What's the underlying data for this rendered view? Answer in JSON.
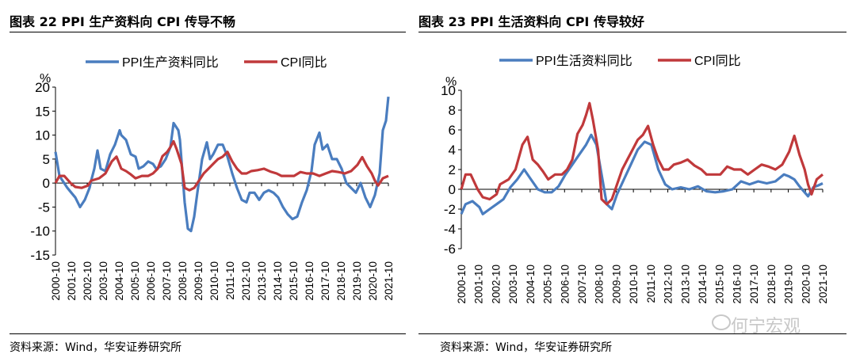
{
  "panels": [
    {
      "title": "图表  22 PPI 生产资料向 CPI 传导不畅",
      "source": "资料来源：Wind，华安证券研究所"
    },
    {
      "title": "图表  23 PPI 生活资料向 CPI 传导较好",
      "source": "资料来源：Wind，华安证券研究所"
    }
  ],
  "watermark": "何宁宏观",
  "watermark_icon": "wechat-icon",
  "colors": {
    "ppi": "#4a7dbf",
    "cpi": "#c0393b"
  },
  "chart_data": [
    {
      "type": "line",
      "ylabel": "%",
      "ylim": [
        -15,
        20
      ],
      "yticks": [
        -15,
        -10,
        -5,
        0,
        5,
        10,
        15,
        20
      ],
      "xlim": [
        2000.75,
        2021.75
      ],
      "xticks": [
        "2000-10",
        "2001-10",
        "2002-10",
        "2003-10",
        "2004-10",
        "2005-10",
        "2006-10",
        "2007-10",
        "2008-10",
        "2009-10",
        "2010-10",
        "2011-10",
        "2012-10",
        "2013-10",
        "2014-10",
        "2015-10",
        "2016-10",
        "2017-10",
        "2018-10",
        "2019-10",
        "2020-10",
        "2021-10"
      ],
      "legend_position": "top",
      "grid": false,
      "series": [
        {
          "name": "PPI生产资料同比",
          "color": "#4a7dbf",
          "x": [
            2000.75,
            2001.0,
            2001.5,
            2001.75,
            2002.0,
            2002.3,
            2002.6,
            2002.9,
            2003.0,
            2003.2,
            2003.4,
            2003.6,
            2003.9,
            2004.2,
            2004.5,
            2004.8,
            2004.9,
            2005.2,
            2005.5,
            2005.8,
            2006.0,
            2006.3,
            2006.6,
            2006.9,
            2007.1,
            2007.4,
            2007.7,
            2008.0,
            2008.2,
            2008.5,
            2008.6,
            2008.9,
            2009.1,
            2009.3,
            2009.5,
            2009.7,
            2010.0,
            2010.3,
            2010.5,
            2010.7,
            2011.0,
            2011.3,
            2011.6,
            2011.9,
            2012.2,
            2012.5,
            2012.8,
            2013.0,
            2013.3,
            2013.6,
            2013.9,
            2014.2,
            2014.5,
            2014.8,
            2015.1,
            2015.4,
            2015.7,
            2016.0,
            2016.3,
            2016.6,
            2016.9,
            2017.1,
            2017.4,
            2017.6,
            2017.9,
            2018.2,
            2018.5,
            2018.8,
            2019.1,
            2019.4,
            2019.7,
            2020.0,
            2020.3,
            2020.6,
            2020.9,
            2021.2,
            2021.4,
            2021.6,
            2021.75
          ],
          "y": [
            6.5,
            1.5,
            -1.0,
            -2.0,
            -3.0,
            -5.0,
            -3.5,
            -1.0,
            0.5,
            3.0,
            6.8,
            3.0,
            2.5,
            6.0,
            8.0,
            11.0,
            10.0,
            9.0,
            6.0,
            5.5,
            3.0,
            3.5,
            4.5,
            4.0,
            3.0,
            3.5,
            5.0,
            7.5,
            12.5,
            11.0,
            9.0,
            -4.0,
            -9.5,
            -10.0,
            -7.0,
            -2.0,
            5.0,
            8.5,
            5.0,
            6.0,
            8.0,
            8.0,
            5.5,
            2.0,
            -1.0,
            -3.5,
            -4.0,
            -2.0,
            -2.0,
            -3.5,
            -2.0,
            -1.5,
            -2.0,
            -3.0,
            -5.0,
            -6.5,
            -7.5,
            -7.0,
            -4.0,
            -1.5,
            2.5,
            8.0,
            10.5,
            7.0,
            8.0,
            5.0,
            5.0,
            3.0,
            0.0,
            -1.0,
            -2.0,
            0.0,
            -3.0,
            -5.0,
            -2.5,
            2.0,
            11.0,
            13.0,
            18.0
          ]
        },
        {
          "name": "CPI同比",
          "color": "#c0393b",
          "x": [
            2000.75,
            2001.0,
            2001.3,
            2001.7,
            2002.0,
            2002.4,
            2002.8,
            2003.0,
            2003.5,
            2003.9,
            2004.3,
            2004.6,
            2004.9,
            2005.2,
            2005.5,
            2005.8,
            2006.2,
            2006.6,
            2006.9,
            2007.2,
            2007.5,
            2007.8,
            2008.0,
            2008.2,
            2008.4,
            2008.7,
            2008.9,
            2009.2,
            2009.5,
            2009.8,
            2010.1,
            2010.4,
            2010.7,
            2011.0,
            2011.3,
            2011.6,
            2011.9,
            2012.2,
            2012.5,
            2012.8,
            2013.1,
            2013.5,
            2013.9,
            2014.3,
            2014.7,
            2015.0,
            2015.4,
            2015.8,
            2016.2,
            2016.6,
            2017.0,
            2017.4,
            2017.8,
            2018.2,
            2018.6,
            2019.0,
            2019.4,
            2019.8,
            2020.1,
            2020.4,
            2020.7,
            2020.9,
            2021.1,
            2021.4,
            2021.75
          ],
          "y": [
            0.0,
            1.5,
            1.5,
            0.0,
            -0.8,
            -1.0,
            -0.5,
            0.5,
            1.0,
            2.0,
            4.5,
            5.5,
            3.0,
            2.5,
            1.8,
            1.0,
            1.5,
            1.5,
            2.0,
            3.0,
            5.6,
            6.5,
            7.5,
            8.7,
            7.0,
            4.0,
            -1.0,
            -1.5,
            -1.0,
            0.5,
            2.0,
            3.0,
            4.0,
            5.0,
            5.5,
            6.5,
            4.5,
            3.0,
            2.0,
            2.0,
            2.5,
            2.7,
            3.0,
            2.4,
            2.0,
            1.5,
            1.5,
            1.5,
            2.3,
            2.0,
            2.0,
            1.5,
            2.0,
            2.5,
            2.3,
            2.0,
            2.5,
            3.8,
            5.4,
            3.5,
            2.0,
            0.5,
            -0.5,
            1.0,
            1.5
          ]
        }
      ]
    },
    {
      "type": "line",
      "ylabel": "%",
      "ylim": [
        -6,
        10
      ],
      "yticks": [
        -6,
        -4,
        -2,
        0,
        2,
        4,
        6,
        8,
        10
      ],
      "xlim": [
        2000.75,
        2021.75
      ],
      "xticks": [
        "2000-10",
        "2001-10",
        "2002-10",
        "2003-10",
        "2004-10",
        "2005-10",
        "2006-10",
        "2007-10",
        "2008-10",
        "2009-10",
        "2010-10",
        "2011-10",
        "2012-10",
        "2013-10",
        "2014-10",
        "2015-10",
        "2016-10",
        "2017-10",
        "2018-10",
        "2019-10",
        "2020-10",
        "2021-10"
      ],
      "legend_position": "top",
      "grid": false,
      "series": [
        {
          "name": "PPI生活资料同比",
          "color": "#4a7dbf",
          "x": [
            2000.75,
            2001.0,
            2001.4,
            2001.8,
            2002.0,
            2002.4,
            2002.8,
            2003.2,
            2003.6,
            2004.0,
            2004.4,
            2004.8,
            2005.2,
            2005.6,
            2006.0,
            2006.4,
            2006.8,
            2007.2,
            2007.6,
            2008.0,
            2008.3,
            2008.6,
            2008.9,
            2009.2,
            2009.5,
            2009.8,
            2010.2,
            2010.6,
            2011.0,
            2011.4,
            2011.8,
            2012.2,
            2012.6,
            2013.0,
            2013.5,
            2014.0,
            2014.5,
            2015.0,
            2015.5,
            2016.0,
            2016.5,
            2017.0,
            2017.5,
            2018.0,
            2018.5,
            2019.0,
            2019.5,
            2019.8,
            2020.1,
            2020.4,
            2020.7,
            2020.9,
            2021.2,
            2021.5,
            2021.75
          ],
          "y": [
            -2.5,
            -1.5,
            -1.2,
            -1.8,
            -2.5,
            -2.0,
            -1.5,
            -1.0,
            0.2,
            1.0,
            2.0,
            1.0,
            0.0,
            -0.3,
            -0.3,
            0.3,
            1.5,
            2.5,
            3.5,
            4.5,
            5.5,
            4.5,
            1.5,
            -1.5,
            -2.0,
            -0.5,
            1.0,
            2.5,
            4.0,
            4.8,
            4.5,
            2.0,
            0.5,
            0.0,
            0.2,
            0.0,
            0.3,
            -0.2,
            -0.3,
            -0.2,
            0.0,
            0.8,
            0.5,
            0.8,
            0.6,
            0.8,
            1.5,
            1.3,
            1.0,
            0.3,
            -0.3,
            -0.7,
            0.2,
            0.4,
            0.6
          ]
        },
        {
          "name": "CPI同比",
          "color": "#c0393b",
          "x": [
            2000.75,
            2001.0,
            2001.3,
            2001.7,
            2002.0,
            2002.4,
            2002.8,
            2003.0,
            2003.5,
            2003.9,
            2004.3,
            2004.6,
            2004.9,
            2005.2,
            2005.5,
            2005.8,
            2006.2,
            2006.6,
            2006.9,
            2007.2,
            2007.5,
            2007.8,
            2008.0,
            2008.2,
            2008.4,
            2008.7,
            2008.9,
            2009.2,
            2009.5,
            2009.8,
            2010.1,
            2010.4,
            2010.7,
            2011.0,
            2011.3,
            2011.6,
            2011.9,
            2012.2,
            2012.5,
            2012.8,
            2013.1,
            2013.5,
            2013.9,
            2014.3,
            2014.7,
            2015.0,
            2015.4,
            2015.8,
            2016.2,
            2016.6,
            2017.0,
            2017.4,
            2017.8,
            2018.2,
            2018.6,
            2019.0,
            2019.4,
            2019.8,
            2020.1,
            2020.4,
            2020.7,
            2020.9,
            2021.1,
            2021.4,
            2021.75
          ],
          "y": [
            0.0,
            1.5,
            1.5,
            0.0,
            -0.8,
            -1.0,
            -0.5,
            0.5,
            1.0,
            2.0,
            4.5,
            5.3,
            3.0,
            2.5,
            1.8,
            1.0,
            1.5,
            1.5,
            2.0,
            3.0,
            5.6,
            6.5,
            7.5,
            8.7,
            7.0,
            4.0,
            -1.0,
            -1.5,
            -1.0,
            0.5,
            2.0,
            3.0,
            4.0,
            5.0,
            5.5,
            6.4,
            4.5,
            3.0,
            2.0,
            2.0,
            2.5,
            2.7,
            3.0,
            2.4,
            2.0,
            1.5,
            1.5,
            1.5,
            2.3,
            2.0,
            2.0,
            1.5,
            2.0,
            2.5,
            2.3,
            2.0,
            2.5,
            3.8,
            5.4,
            3.5,
            2.0,
            0.5,
            -0.5,
            1.0,
            1.5
          ]
        }
      ]
    }
  ]
}
